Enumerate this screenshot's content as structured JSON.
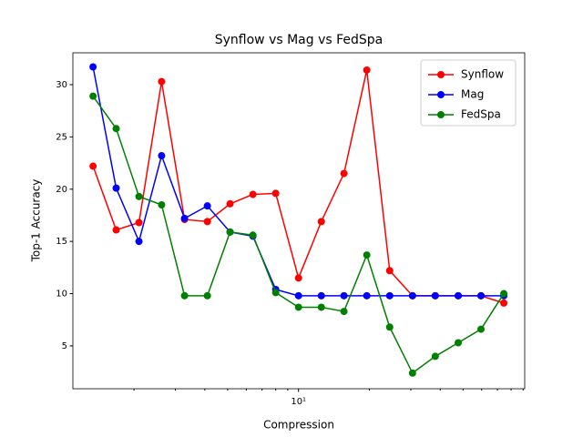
{
  "chart_data": {
    "type": "line",
    "title": "Synflow vs Mag vs FedSpa",
    "xlabel": "Compression",
    "ylabel": "Top-1 Accuracy",
    "xscale": "log",
    "legend": "upper right",
    "x": [
      1.34,
      1.68,
      2.1,
      2.62,
      3.28,
      4.1,
      5.12,
      6.4,
      8,
      10,
      12.5,
      15.6,
      19.5,
      24.4,
      30.5,
      38.1,
      47.7,
      59.6,
      74.5
    ],
    "series": [
      {
        "name": "Synflow",
        "color": "#ff0000",
        "values": [
          22.2,
          16.1,
          16.8,
          30.3,
          17.1,
          16.9,
          18.6,
          19.5,
          19.6,
          11.5,
          16.9,
          21.5,
          31.4,
          12.2,
          9.8,
          9.8,
          9.8,
          9.8,
          9.1
        ]
      },
      {
        "name": "Mag",
        "color": "#0000ff",
        "values": [
          31.7,
          20.1,
          15.0,
          23.2,
          17.2,
          18.4,
          15.9,
          15.5,
          10.4,
          9.8,
          9.8,
          9.8,
          9.8,
          9.8,
          9.8,
          9.8,
          9.8,
          9.8,
          9.8
        ]
      },
      {
        "name": "FedSpa",
        "color": "#008000",
        "values": [
          28.9,
          25.8,
          19.3,
          18.5,
          9.8,
          9.8,
          15.9,
          15.6,
          10.1,
          8.7,
          8.7,
          8.3,
          13.7,
          6.8,
          2.4,
          4.0,
          5.3,
          6.6,
          10.0
        ]
      }
    ],
    "xlim": [
      1.1,
      91.4
    ],
    "xticks": [
      {
        "value": 10,
        "label": "10¹"
      }
    ],
    "xminor_ticks": [
      2,
      3,
      4,
      5,
      6,
      7,
      8,
      9,
      20,
      30,
      40,
      50,
      60,
      70,
      80,
      90
    ],
    "ylim": [
      0.9,
      33.05
    ],
    "yticks": [
      5,
      10,
      15,
      20,
      25,
      30
    ]
  }
}
